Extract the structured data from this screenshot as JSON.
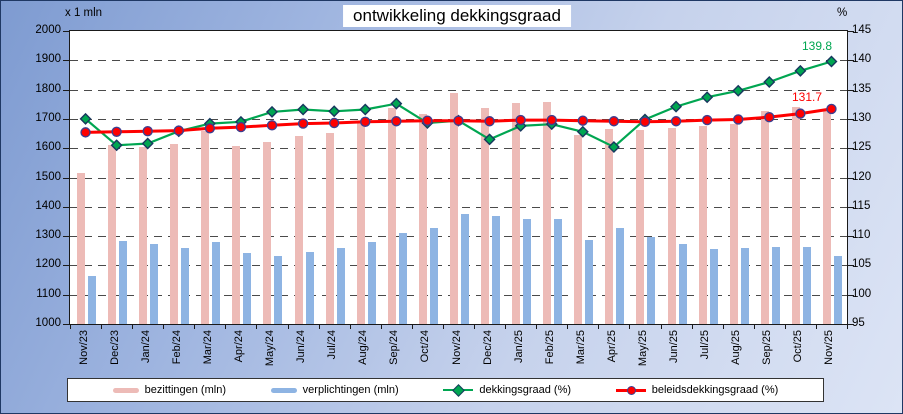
{
  "title": "ontwikkeling dekkingsgraad",
  "left_axis_unit": "x 1 mln",
  "right_axis_unit": "%",
  "chart_data": {
    "type": "bar",
    "subtype": "combo bar+line, dual axis",
    "categories": [
      "Nov/23",
      "Dec/23",
      "Jan/24",
      "Feb/24",
      "Mar/24",
      "Apr/24",
      "May/24",
      "Jun/24",
      "Jul/24",
      "Aug/24",
      "Sep/24",
      "Oct/24",
      "Nov/24",
      "Dec/24",
      "Jan/25",
      "Feb/25",
      "Mar/25",
      "Apr/25",
      "May/25",
      "Jun/25",
      "Jul/25",
      "Aug/25",
      "Sep/25",
      "Oct/25",
      "Nov/25"
    ],
    "series": [
      {
        "name": "bezittingen (mln)",
        "kind": "bar",
        "axis": "left",
        "color": "#EDBBB7",
        "values": [
          1515,
          1612,
          1603,
          1616,
          1660,
          1608,
          1622,
          1640,
          1653,
          1685,
          1736,
          1716,
          1787,
          1737,
          1753,
          1757,
          1646,
          1664,
          1662,
          1668,
          1675,
          1684,
          1728,
          1740,
          1728
        ]
      },
      {
        "name": "verplichtingen (mln)",
        "kind": "bar",
        "axis": "left",
        "color": "#8EB4E3",
        "values": [
          1165,
          1285,
          1273,
          1261,
          1281,
          1241,
          1233,
          1246,
          1259,
          1280,
          1310,
          1326,
          1375,
          1370,
          1358,
          1360,
          1286,
          1327,
          1298,
          1272,
          1255,
          1258,
          1264,
          1263,
          1232
        ]
      },
      {
        "name": "dekkingsgraad (%)",
        "kind": "line",
        "axis": "right",
        "color": "#00A651",
        "marker": "diamond",
        "marker_edge": "#17375E",
        "values": [
          130.0,
          125.5,
          125.8,
          127.9,
          129.2,
          129.5,
          131.2,
          131.6,
          131.3,
          131.6,
          132.6,
          129.3,
          129.7,
          126.5,
          128.8,
          129.1,
          127.8,
          125.2,
          129.9,
          132.1,
          133.7,
          134.8,
          136.3,
          138.2,
          139.8
        ]
      },
      {
        "name": "beleidsdekkingsgraad (%)",
        "kind": "line",
        "axis": "right",
        "color": "#FE0000",
        "marker": "circle",
        "marker_edge": "#3E3E8F",
        "values": [
          127.7,
          127.8,
          127.9,
          128.0,
          128.4,
          128.6,
          128.9,
          129.2,
          129.3,
          129.5,
          129.6,
          129.7,
          129.7,
          129.6,
          129.8,
          129.8,
          129.7,
          129.6,
          129.5,
          129.6,
          129.8,
          129.9,
          130.3,
          130.9,
          131.7
        ]
      }
    ],
    "left_axis": {
      "min": 1000,
      "max": 2000,
      "step": 100,
      "ticks": [
        2000,
        1900,
        1800,
        1700,
        1600,
        1500,
        1400,
        1300,
        1200,
        1100,
        1000
      ]
    },
    "right_axis": {
      "min": 95,
      "max": 145,
      "step": 5,
      "ticks": [
        145,
        140,
        135,
        130,
        125,
        120,
        115,
        110,
        105,
        100,
        95
      ]
    },
    "grid": "dashed horizontal",
    "legend_position": "bottom",
    "annotations": [
      {
        "text": "139.8",
        "color": "#00A651",
        "series": "dekkingsgraad (%)",
        "category": "Nov/25"
      },
      {
        "text": "131.7",
        "color": "#FE0000",
        "series": "beleidsdekkingsgraad (%)",
        "category": "Nov/25"
      }
    ]
  }
}
